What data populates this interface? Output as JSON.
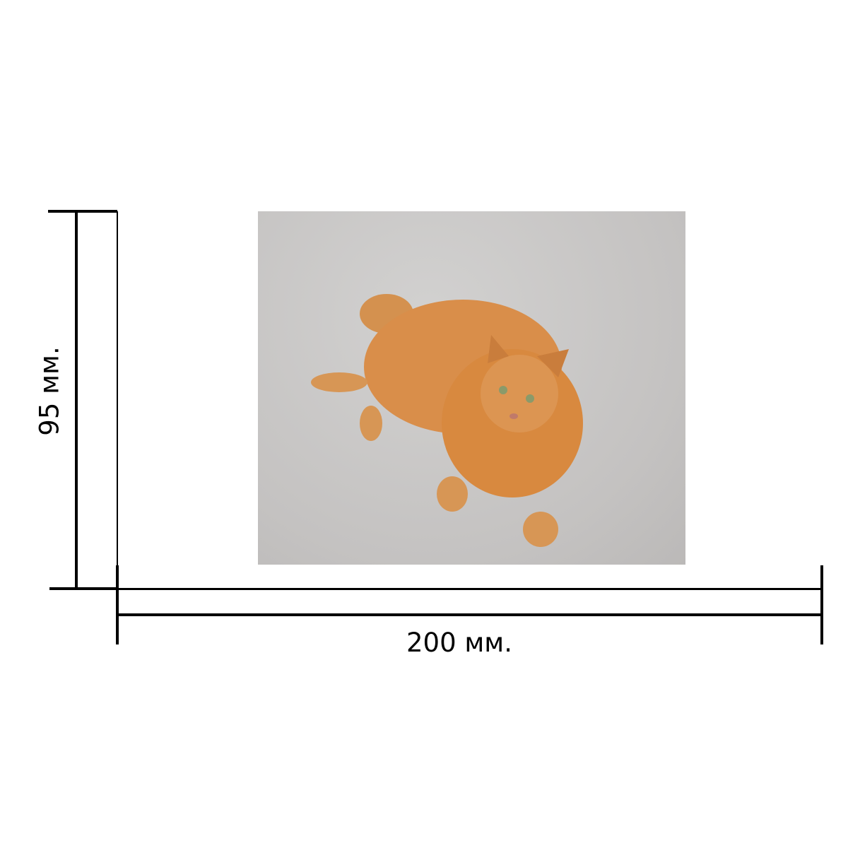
{
  "dimensions": {
    "height_label": "95 мм.",
    "width_label": "200 мм."
  },
  "photo": {
    "subject": "ginger-cat",
    "colors": {
      "fur": "#d98e4a",
      "background": "#c8c6c5"
    }
  }
}
